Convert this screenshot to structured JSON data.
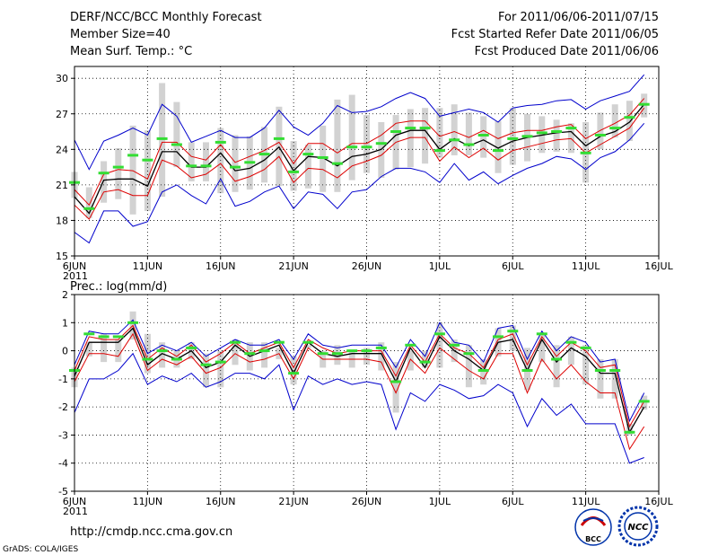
{
  "header": {
    "title": "DERF/NCC/BCC Monthly Forecast",
    "member_size": "Member Size=40",
    "variable": "Mean Surf. Temp.: °C",
    "period": "For 2011/06/06-2011/07/15",
    "started": "Fcst Started Refer Date 2011/06/05",
    "produced": "Fcst Produced Date 2011/06/06"
  },
  "footer": {
    "url": "http://cmdp.ncc.cma.gov.cn",
    "credit": "GrADS: COLA/IGES",
    "logo_bcc": "BCC",
    "logo_ncc": "NCC"
  },
  "colors": {
    "box": "#d2d2d2",
    "outer": "#0000cc",
    "inner": "#dd0000",
    "mean": "#000000",
    "marker": "#33dd33",
    "grid": "#000000"
  },
  "chart_data": [
    {
      "type": "line",
      "title": "Mean Surf. Temp.: °C",
      "ylim": [
        15,
        31
      ],
      "yticks": [
        15,
        18,
        21,
        24,
        27,
        30
      ],
      "xlim": [
        1,
        41
      ],
      "xticks": [
        {
          "x": 1,
          "label": "6JUN"
        },
        {
          "x": 6,
          "label": "11JUN"
        },
        {
          "x": 11,
          "label": "16JUN"
        },
        {
          "x": 16,
          "label": "21JUN"
        },
        {
          "x": 21,
          "label": "26JUN"
        },
        {
          "x": 26,
          "label": "1JUL"
        },
        {
          "x": 31,
          "label": "6JUL"
        },
        {
          "x": 36,
          "label": "11JUL"
        },
        {
          "x": 41,
          "label": "16JUL"
        }
      ],
      "year_label": "2011",
      "x": [
        1,
        2,
        3,
        4,
        5,
        6,
        7,
        8,
        9,
        10,
        11,
        12,
        13,
        14,
        15,
        16,
        17,
        18,
        19,
        20,
        21,
        22,
        23,
        24,
        25,
        26,
        27,
        28,
        29,
        30,
        31,
        32,
        33,
        34,
        35,
        36,
        37,
        38,
        39,
        40
      ],
      "series": [
        {
          "name": "max",
          "values": [
            24.8,
            22.3,
            24.7,
            25.2,
            25.8,
            25.2,
            27.8,
            26.8,
            24.6,
            25.1,
            25.6,
            25.0,
            25.0,
            25.8,
            27.3,
            25.9,
            25.2,
            26.2,
            27.7,
            27.1,
            27.2,
            27.6,
            28.3,
            28.8,
            28.3,
            26.8,
            27.1,
            27.4,
            27.1,
            26.3,
            27.5,
            27.7,
            27.8,
            28.1,
            28.2,
            27.4,
            28.1,
            28.5,
            28.9,
            30.3
          ]
        },
        {
          "name": "upper",
          "values": [
            20.6,
            19.3,
            21.9,
            22.3,
            22.2,
            21.5,
            24.6,
            24.6,
            23.4,
            23.1,
            24.4,
            22.9,
            23.4,
            23.9,
            24.6,
            22.8,
            24.5,
            24.5,
            23.7,
            24.5,
            24.5,
            25.2,
            26.2,
            26.4,
            26.4,
            25.1,
            25.5,
            25.0,
            25.6,
            24.9,
            25.4,
            25.6,
            25.6,
            25.9,
            26.1,
            24.9,
            25.6,
            26.2,
            26.9,
            28.3
          ]
        },
        {
          "name": "mean",
          "values": [
            20.0,
            18.6,
            21.4,
            21.5,
            21.5,
            20.9,
            23.8,
            23.8,
            22.5,
            22.5,
            23.7,
            22.2,
            22.4,
            23.1,
            24.2,
            22.2,
            23.4,
            23.3,
            22.6,
            23.4,
            23.6,
            24.0,
            25.2,
            25.6,
            25.6,
            24.0,
            24.9,
            24.3,
            24.8,
            24.1,
            24.7,
            25.0,
            25.2,
            25.4,
            25.5,
            24.3,
            25.1,
            25.5,
            26.3,
            27.8
          ]
        },
        {
          "name": "lower",
          "values": [
            19.3,
            18.1,
            20.4,
            20.6,
            20.1,
            20.1,
            23.1,
            22.6,
            21.6,
            21.9,
            22.8,
            21.3,
            21.7,
            22.3,
            23.4,
            21.2,
            22.4,
            22.3,
            21.6,
            22.6,
            23.0,
            23.5,
            24.6,
            25.0,
            25.0,
            23.0,
            24.2,
            23.3,
            24.1,
            23.1,
            23.9,
            24.2,
            24.5,
            24.8,
            24.9,
            23.7,
            24.4,
            25.1,
            25.8,
            27.5
          ]
        },
        {
          "name": "min",
          "values": [
            17.0,
            16.1,
            18.8,
            18.8,
            17.5,
            17.9,
            20.4,
            21.0,
            20.1,
            19.4,
            21.5,
            19.2,
            19.6,
            20.4,
            20.9,
            19.0,
            20.4,
            20.2,
            19.0,
            20.4,
            20.6,
            21.7,
            22.4,
            22.4,
            22.1,
            21.2,
            22.8,
            21.4,
            22.1,
            21.1,
            21.8,
            22.4,
            22.8,
            23.4,
            23.2,
            22.3,
            23.3,
            23.8,
            24.8,
            26.2
          ]
        },
        {
          "name": "observed",
          "values": [
            21.2,
            19.0,
            22.0,
            22.5,
            23.5,
            23.1,
            24.9,
            24.4,
            22.6,
            22.6,
            24.6,
            22.5,
            22.9,
            23.6,
            24.9,
            22.1,
            23.6,
            23.3,
            22.8,
            24.2,
            24.2,
            24.5,
            25.5,
            25.8,
            25.8,
            23.9,
            24.8,
            24.4,
            25.2,
            23.9,
            24.9,
            25.1,
            25.4,
            25.5,
            25.8,
            23.7,
            25.2,
            25.8,
            26.7,
            27.8
          ]
        },
        {
          "name": "box_top",
          "values": [
            22.1,
            20.8,
            23.0,
            24.1,
            26.0,
            25.6,
            29.6,
            28.0,
            24.6,
            24.6,
            25.8,
            25.2,
            25.1,
            25.9,
            27.6,
            24.7,
            24.4,
            26.0,
            28.2,
            28.6,
            26.9,
            26.3,
            26.9,
            27.4,
            27.5,
            27.5,
            27.8,
            27.1,
            26.8,
            26.4,
            27.5,
            27.0,
            26.8,
            26.5,
            26.2,
            26.3,
            27.1,
            27.8,
            28.1,
            28.7
          ]
        },
        {
          "name": "box_bottom",
          "values": [
            19.9,
            18.2,
            19.5,
            19.8,
            18.5,
            18.8,
            20.0,
            22.5,
            21.3,
            21.3,
            20.3,
            20.4,
            20.6,
            21.2,
            20.9,
            20.5,
            20.7,
            20.4,
            20.4,
            21.4,
            22.0,
            21.6,
            22.3,
            22.5,
            22.8,
            23.3,
            23.5,
            23.5,
            23.3,
            22.0,
            22.7,
            23.0,
            23.7,
            23.8,
            23.7,
            21.2,
            24.0,
            25.0,
            24.7,
            26.7
          ]
        }
      ]
    },
    {
      "type": "line",
      "title": "Prec.: log(mm/d)",
      "ylim": [
        -5,
        2
      ],
      "yticks": [
        -5,
        -4,
        -3,
        -2,
        -1,
        0,
        1,
        2
      ],
      "xlim": [
        1,
        41
      ],
      "xticks": [
        {
          "x": 1,
          "label": "6JUN"
        },
        {
          "x": 6,
          "label": "11JUN"
        },
        {
          "x": 11,
          "label": "16JUN"
        },
        {
          "x": 16,
          "label": "21JUN"
        },
        {
          "x": 21,
          "label": "26JUN"
        },
        {
          "x": 26,
          "label": "1JUL"
        },
        {
          "x": 31,
          "label": "6JUL"
        },
        {
          "x": 36,
          "label": "11JUL"
        },
        {
          "x": 41,
          "label": "16JUL"
        }
      ],
      "year_label": "2011",
      "x": [
        1,
        2,
        3,
        4,
        5,
        6,
        7,
        8,
        9,
        10,
        11,
        12,
        13,
        14,
        15,
        16,
        17,
        18,
        19,
        20,
        21,
        22,
        23,
        24,
        25,
        26,
        27,
        28,
        29,
        30,
        31,
        32,
        33,
        34,
        35,
        36,
        37,
        38,
        39,
        40
      ],
      "series": [
        {
          "name": "max",
          "values": [
            -0.5,
            0.7,
            0.6,
            0.6,
            1.1,
            -0.1,
            0.2,
            0.0,
            0.3,
            -0.2,
            0.1,
            0.4,
            0.2,
            0.2,
            0.4,
            -0.3,
            0.6,
            0.2,
            0.1,
            0.2,
            0.2,
            0.2,
            -0.6,
            0.4,
            -0.2,
            1.0,
            0.3,
            0.2,
            -0.4,
            0.8,
            0.9,
            -0.3,
            0.7,
            0.0,
            0.5,
            0.3,
            -0.4,
            -0.3,
            -2.5,
            -1.5
          ]
        },
        {
          "name": "upper",
          "values": [
            -0.7,
            0.5,
            0.4,
            0.4,
            0.9,
            -0.3,
            0.1,
            -0.2,
            0.2,
            -0.4,
            -0.1,
            0.3,
            -0.1,
            0.1,
            0.3,
            -0.6,
            0.4,
            0.1,
            -0.1,
            0.0,
            0.0,
            0.0,
            -0.9,
            0.2,
            -0.4,
            0.6,
            0.1,
            -0.1,
            -0.6,
            0.4,
            0.6,
            -0.5,
            0.5,
            -0.2,
            0.3,
            0.0,
            -0.6,
            -0.5,
            -2.7,
            -1.8
          ]
        },
        {
          "name": "mean",
          "values": [
            -0.9,
            0.3,
            0.3,
            0.3,
            0.8,
            -0.5,
            -0.1,
            -0.3,
            0.0,
            -0.6,
            -0.4,
            0.2,
            -0.2,
            0.0,
            0.2,
            -0.8,
            0.3,
            -0.1,
            -0.2,
            -0.1,
            -0.1,
            -0.1,
            -1.1,
            0.1,
            -0.6,
            0.5,
            0.0,
            -0.3,
            -0.7,
            0.3,
            0.4,
            -0.7,
            0.4,
            -0.4,
            0.1,
            -0.2,
            -0.8,
            -0.8,
            -2.9,
            -2.0
          ]
        },
        {
          "name": "lower",
          "values": [
            -1.1,
            -0.1,
            -0.1,
            -0.2,
            0.6,
            -0.7,
            -0.3,
            -0.5,
            -0.2,
            -0.8,
            -0.6,
            -0.1,
            -0.4,
            -0.3,
            -0.1,
            -1.0,
            0.1,
            -0.3,
            -0.3,
            -0.3,
            -0.3,
            -0.4,
            -1.5,
            -0.3,
            -0.8,
            0.1,
            -0.3,
            -0.7,
            -1.0,
            -0.1,
            -0.1,
            -1.5,
            -0.3,
            -1.0,
            -0.5,
            -1.1,
            -1.5,
            -1.5,
            -3.5,
            -2.7
          ]
        },
        {
          "name": "min",
          "values": [
            -2.2,
            -1.0,
            -1.0,
            -0.7,
            -0.1,
            -1.2,
            -0.9,
            -1.1,
            -0.8,
            -1.3,
            -1.1,
            -0.8,
            -0.8,
            -1.0,
            -0.5,
            -2.1,
            -0.9,
            -1.2,
            -1.0,
            -1.2,
            -1.1,
            -1.2,
            -2.8,
            -1.5,
            -1.8,
            -1.2,
            -1.4,
            -1.7,
            -1.6,
            -1.2,
            -1.5,
            -2.7,
            -1.7,
            -2.3,
            -1.9,
            -2.6,
            -2.6,
            -2.6,
            -4.0,
            -3.8
          ]
        },
        {
          "name": "observed",
          "values": [
            -0.7,
            0.6,
            0.5,
            0.5,
            1.0,
            -0.3,
            0.0,
            -0.3,
            0.1,
            -0.5,
            -0.4,
            0.3,
            -0.1,
            0.0,
            0.3,
            -0.8,
            0.3,
            -0.1,
            -0.1,
            0.0,
            0.0,
            0.1,
            -1.1,
            0.2,
            -0.4,
            0.6,
            0.2,
            -0.1,
            -0.7,
            0.5,
            0.7,
            -0.7,
            0.6,
            -0.3,
            0.3,
            0.1,
            -0.7,
            -0.7,
            -2.9,
            -1.8
          ]
        },
        {
          "name": "box_top",
          "values": [
            -0.6,
            0.3,
            0.6,
            0.4,
            1.4,
            0.6,
            0.3,
            0.0,
            0.3,
            -0.1,
            0.0,
            0.4,
            0.3,
            0.3,
            0.1,
            -0.2,
            0.2,
            0.0,
            0.2,
            0.0,
            0.1,
            0.3,
            -0.4,
            0.0,
            0.0,
            1.0,
            0.4,
            0.2,
            -0.3,
            0.8,
            0.9,
            0.1,
            0.6,
            0.2,
            0.5,
            0.2,
            -0.3,
            -0.3,
            -2.6,
            -1.6
          ]
        },
        {
          "name": "box_bottom",
          "values": [
            -1.3,
            -0.2,
            -0.4,
            -0.4,
            0.4,
            -0.8,
            -0.6,
            -0.6,
            -0.3,
            -1.3,
            -1.3,
            -0.5,
            -0.7,
            -0.6,
            -0.3,
            -1.2,
            0.1,
            -0.6,
            -0.5,
            -0.6,
            -0.5,
            -0.7,
            -2.2,
            -0.7,
            -0.6,
            -0.6,
            -0.4,
            -1.3,
            -1.2,
            -0.2,
            0.0,
            -1.4,
            -0.4,
            -1.3,
            -0.5,
            -1.2,
            -1.7,
            -1.7,
            -3.0,
            -2.1
          ]
        }
      ]
    }
  ]
}
